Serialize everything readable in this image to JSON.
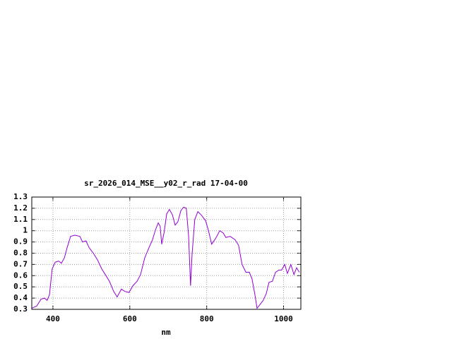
{
  "chart_data": {
    "type": "line",
    "title": "sr_2026_014_MSE__y02_r_rad 17-04-00",
    "x_label": "nm",
    "xlim": [
      345,
      1045
    ],
    "xticks": [
      400,
      600,
      800,
      1000
    ],
    "ylim": [
      0.3,
      1.3
    ],
    "yticks": [
      0.3,
      0.4,
      0.5,
      0.6,
      0.7,
      0.8,
      0.9,
      1,
      1.1,
      1.2,
      1.3
    ],
    "grid": true,
    "series": [
      {
        "color": "#9400d3",
        "x": [
          345,
          358,
          369,
          378,
          385,
          391,
          398,
          406,
          415,
          422,
          430,
          437,
          446,
          457,
          470,
          477,
          486,
          494,
          505,
          516,
          527,
          538,
          547,
          558,
          567,
          578,
          587,
          598,
          608,
          619,
          628,
          639,
          650,
          659,
          667,
          674,
          679,
          683,
          689,
          696,
          703,
          711,
          718,
          725,
          733,
          740,
          747,
          753,
          758,
          762,
          769,
          777,
          786,
          797,
          804,
          813,
          823,
          834,
          843,
          850,
          861,
          874,
          883,
          892,
          902,
          911,
          918,
          925,
          931,
          938,
          947,
          955,
          962,
          971,
          979,
          988,
          995,
          1003,
          1010,
          1019,
          1027,
          1034,
          1041
        ],
        "values": [
          0.31,
          0.33,
          0.39,
          0.4,
          0.38,
          0.43,
          0.66,
          0.72,
          0.73,
          0.71,
          0.76,
          0.85,
          0.95,
          0.96,
          0.95,
          0.9,
          0.91,
          0.85,
          0.8,
          0.74,
          0.66,
          0.6,
          0.55,
          0.46,
          0.41,
          0.48,
          0.46,
          0.45,
          0.51,
          0.55,
          0.61,
          0.76,
          0.85,
          0.92,
          1.01,
          1.07,
          1.04,
          0.88,
          0.98,
          1.15,
          1.19,
          1.14,
          1.05,
          1.08,
          1.18,
          1.21,
          1.2,
          0.95,
          0.51,
          0.79,
          1.1,
          1.17,
          1.14,
          1.09,
          1.01,
          0.88,
          0.93,
          1.0,
          0.98,
          0.94,
          0.95,
          0.92,
          0.87,
          0.7,
          0.63,
          0.63,
          0.57,
          0.44,
          0.31,
          0.34,
          0.38,
          0.44,
          0.54,
          0.55,
          0.63,
          0.65,
          0.65,
          0.7,
          0.62,
          0.7,
          0.61,
          0.67,
          0.63
        ]
      }
    ]
  }
}
